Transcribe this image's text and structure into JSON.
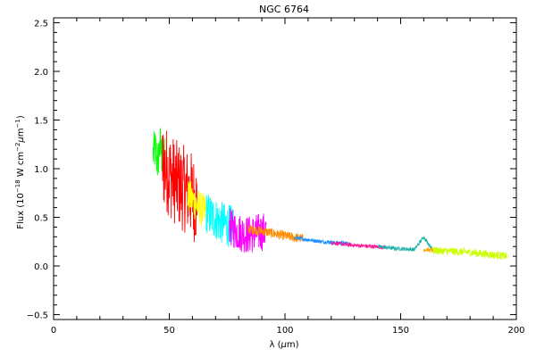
{
  "chart_data": {
    "type": "line",
    "title": "NGC 6764",
    "xlabel_parts": [
      "λ (",
      "μ",
      "m)"
    ],
    "ylabel_parts": [
      "Flux (10",
      "−18",
      " W cm",
      "−2",
      "μ",
      "m",
      "−1",
      ")"
    ],
    "xlim": [
      0,
      200
    ],
    "ylim": [
      -0.55,
      2.55
    ],
    "x_ticks": [
      0,
      50,
      100,
      150,
      200
    ],
    "x_tick_labels": [
      "0",
      "50",
      "100",
      "150",
      "200"
    ],
    "y_ticks": [
      -0.5,
      0.0,
      0.5,
      1.0,
      1.5,
      2.0,
      2.5
    ],
    "y_tick_labels": [
      "−0.5",
      "0.0",
      "0.5",
      "1.0",
      "1.5",
      "2.0",
      "2.5"
    ],
    "grid": false,
    "legend": "none",
    "series": [
      {
        "color": "#00ff00",
        "x": [
          43,
          44,
          45,
          46,
          47,
          48
        ],
        "y": [
          1.15,
          1.2,
          1.05,
          1.25,
          1.1,
          1.15
        ],
        "noise": 0.22
      },
      {
        "color": "#ff0000",
        "x": [
          47,
          50,
          53,
          56,
          59,
          62
        ],
        "y": [
          1.05,
          0.95,
          0.85,
          0.8,
          0.75,
          0.65
        ],
        "noise": 0.45
      },
      {
        "color": "#ffff00",
        "x": [
          58,
          60,
          62,
          64,
          66
        ],
        "y": [
          0.72,
          0.68,
          0.62,
          0.58,
          0.55
        ],
        "noise": 0.18
      },
      {
        "color": "#00ffff",
        "x": [
          66,
          69,
          72,
          75,
          78
        ],
        "y": [
          0.55,
          0.5,
          0.45,
          0.42,
          0.4
        ],
        "noise": 0.22
      },
      {
        "color": "#ff00ff",
        "x": [
          76,
          80,
          84,
          88,
          92
        ],
        "y": [
          0.4,
          0.35,
          0.32,
          0.34,
          0.36
        ],
        "noise": 0.2
      },
      {
        "color": "#ff8c00",
        "x": [
          84,
          90,
          96,
          102,
          108
        ],
        "y": [
          0.38,
          0.36,
          0.33,
          0.3,
          0.28
        ],
        "noise": 0.05
      },
      {
        "color": "#1e90ff",
        "x": [
          104,
          110,
          116,
          122,
          128
        ],
        "y": [
          0.29,
          0.27,
          0.25,
          0.24,
          0.23
        ],
        "noise": 0.02
      },
      {
        "color": "#ff1493",
        "x": [
          120,
          126,
          132,
          138,
          144
        ],
        "y": [
          0.24,
          0.22,
          0.21,
          0.2,
          0.19
        ],
        "noise": 0.02
      },
      {
        "color": "#20b2aa",
        "x": [
          140,
          148,
          156,
          160,
          164
        ],
        "y": [
          0.2,
          0.18,
          0.17,
          0.3,
          0.16
        ],
        "noise": 0.02
      },
      {
        "color": "#ffa500",
        "x": [
          160,
          164,
          168
        ],
        "y": [
          0.17,
          0.16,
          0.16
        ],
        "noise": 0.02
      },
      {
        "color": "#ccff00",
        "x": [
          164,
          172,
          180,
          188,
          196
        ],
        "y": [
          0.16,
          0.15,
          0.14,
          0.12,
          0.1
        ],
        "noise": 0.04
      }
    ]
  }
}
